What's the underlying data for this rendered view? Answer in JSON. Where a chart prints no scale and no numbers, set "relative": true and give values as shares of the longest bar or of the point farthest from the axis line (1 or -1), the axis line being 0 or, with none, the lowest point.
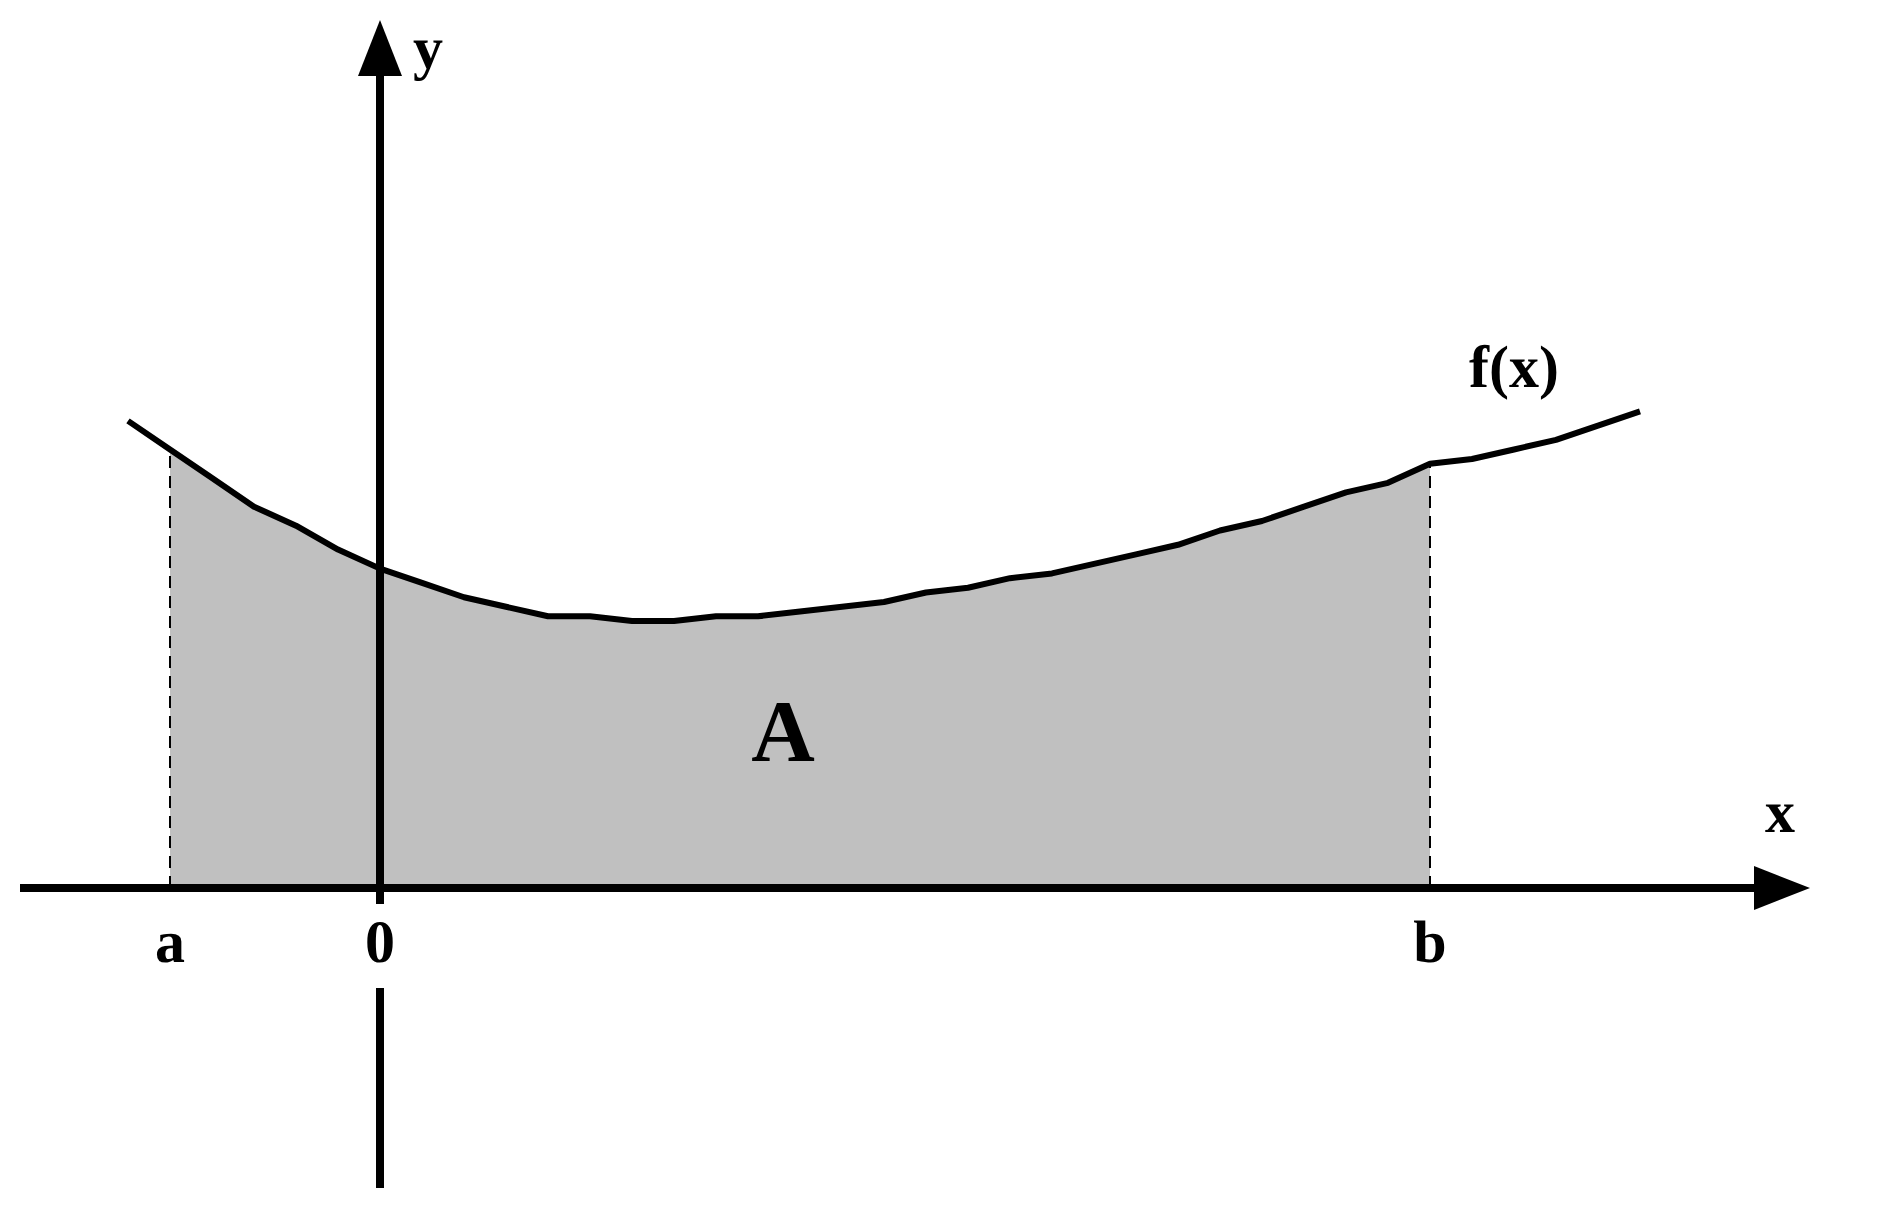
{
  "chart_data": {
    "type": "line",
    "relative": true,
    "xlabel": "x",
    "marker": "none",
    "categories": [
      null,
      null,
      "a",
      null,
      null,
      null,
      null,
      "0",
      null,
      null,
      null,
      null,
      null,
      null,
      null,
      null,
      null,
      null,
      null,
      null,
      null,
      null,
      null,
      null,
      null,
      null,
      null,
      null,
      null,
      null,
      null,
      null,
      "b",
      null,
      null,
      null,
      null,
      null
    ],
    "series": [
      {
        "type": "area",
        "color": "#c0c0c0",
        "values": [
          null,
          null,
          0.92,
          0.86,
          0.8,
          0.76,
          0.71,
          0.67,
          0.64,
          0.61,
          0.59,
          0.57,
          0.57,
          0.56,
          0.56,
          0.57,
          0.57,
          0.58,
          0.59,
          0.6,
          0.62,
          0.63,
          0.65,
          0.66,
          0.68,
          0.7,
          0.72,
          0.75,
          0.77,
          0.8,
          0.83,
          0.85,
          0.89,
          null,
          null,
          null,
          null,
          null
        ]
      },
      {
        "type": "line",
        "name": "f(x)",
        "color": "#000000",
        "values": [
          null,
          0.98,
          0.92,
          0.86,
          0.8,
          0.76,
          0.71,
          0.67,
          0.64,
          0.61,
          0.59,
          0.57,
          0.57,
          0.56,
          0.56,
          0.57,
          0.57,
          0.58,
          0.59,
          0.6,
          0.62,
          0.63,
          0.65,
          0.66,
          0.68,
          0.7,
          0.72,
          0.75,
          0.77,
          0.8,
          0.83,
          0.85,
          0.89,
          0.9,
          0.92,
          0.94,
          0.97,
          1
        ]
      }
    ],
    "ref_lines": [
      {
        "axis": "x",
        "value": "a",
        "line_style": "dashed"
      },
      {
        "axis": "x",
        "value": "0",
        "line_style": "solid"
      },
      {
        "axis": "x",
        "value": "b",
        "line_style": "dashed"
      }
    ],
    "annotations": [
      "A",
      "y"
    ]
  }
}
